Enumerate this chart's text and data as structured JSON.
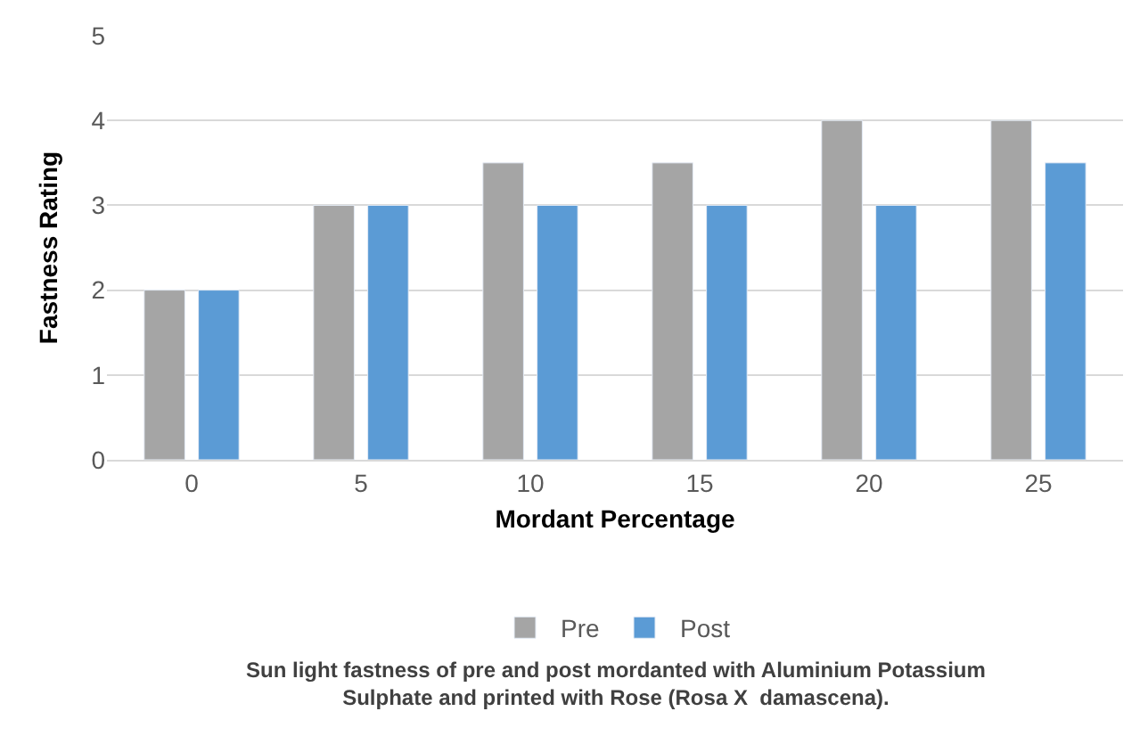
{
  "chart_data": {
    "type": "bar",
    "xlabel": "Mordant Percentage",
    "ylabel": "Fastness Rating",
    "categories": [
      "0",
      "5",
      "10",
      "15",
      "20",
      "25"
    ],
    "series": [
      {
        "name": "Pre",
        "color": "#a5a5a5",
        "values": [
          2,
          3,
          3.5,
          3.5,
          4,
          4
        ]
      },
      {
        "name": "Post",
        "color": "#5b9bd5",
        "values": [
          2,
          3,
          3,
          3,
          3,
          3.5
        ]
      }
    ],
    "ylim": [
      0,
      5
    ],
    "yticks": [
      0,
      1,
      2,
      3,
      4,
      5
    ],
    "grid": "y",
    "legend": "bottom",
    "annotations": [
      "Sun light fastness of pre and post mordanted with Aluminium Potassium\nSulphate and printed with Rose (Rosa X  damascena)."
    ]
  }
}
